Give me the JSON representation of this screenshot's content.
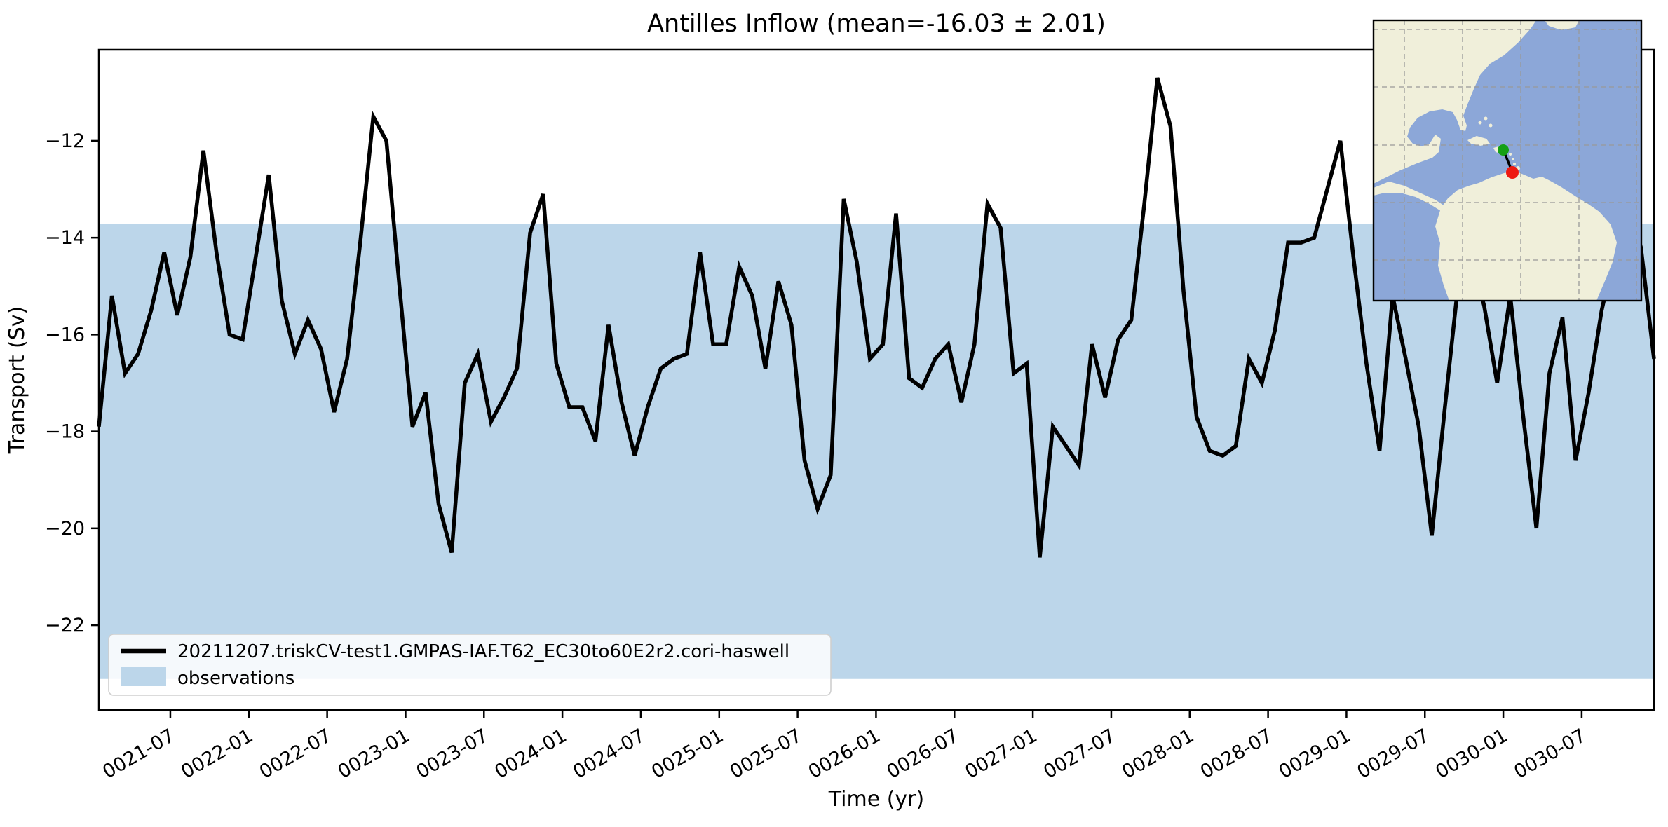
{
  "chart_data": {
    "type": "line",
    "title": "Antilles Inflow (mean=-16.03 ± 2.01)",
    "xlabel": "Time (yr)",
    "ylabel": "Transport (Sv)",
    "start_month": "0021-01",
    "interval": "monthly",
    "ylim": [
      -23.75,
      -10.12
    ],
    "grid": false,
    "legend_position": "lower left",
    "y_tick_labels": [
      "−12",
      "−14",
      "−16",
      "−18",
      "−20",
      "−22"
    ],
    "y_tick_values": [
      -12,
      -14,
      -16,
      -18,
      -20,
      -22
    ],
    "x_tick_labels": [
      "0021-07",
      "0022-01",
      "0022-07",
      "0023-01",
      "0023-07",
      "0024-01",
      "0024-07",
      "0025-01",
      "0025-07",
      "0026-01",
      "0026-07",
      "0027-01",
      "0027-07",
      "0028-01",
      "0028-07",
      "0029-01",
      "0029-07",
      "0030-01",
      "0030-07"
    ],
    "series": [
      {
        "name": "20211207.triskCV-test1.GMPAS-IAF.T62_EC30to60E2r2.cori-haswell",
        "color": "#000000",
        "values": [
          -17.9,
          -15.2,
          -16.8,
          -16.4,
          -15.5,
          -14.3,
          -15.6,
          -14.4,
          -12.2,
          -14.3,
          -16.0,
          -16.1,
          -14.4,
          -12.7,
          -15.3,
          -16.4,
          -15.7,
          -16.3,
          -17.6,
          -16.5,
          -14.1,
          -11.5,
          -12.0,
          -15.0,
          -17.9,
          -17.2,
          -19.5,
          -20.5,
          -17.0,
          -16.4,
          -17.8,
          -17.3,
          -16.7,
          -13.9,
          -13.1,
          -16.6,
          -17.5,
          -17.5,
          -18.2,
          -15.8,
          -17.4,
          -18.5,
          -17.5,
          -16.7,
          -16.5,
          -16.4,
          -14.3,
          -16.2,
          -16.2,
          -14.6,
          -15.2,
          -16.7,
          -14.9,
          -15.8,
          -18.6,
          -19.6,
          -18.9,
          -13.2,
          -14.5,
          -16.5,
          -16.2,
          -13.5,
          -16.9,
          -17.1,
          -16.5,
          -16.2,
          -17.4,
          -16.2,
          -13.3,
          -13.8,
          -16.8,
          -16.6,
          -20.6,
          -17.9,
          -18.3,
          -18.7,
          -16.2,
          -17.3,
          -16.1,
          -15.7,
          -13.3,
          -10.7,
          -11.7,
          -15.1,
          -17.7,
          -18.4,
          -18.5,
          -18.3,
          -16.5,
          -17.0,
          -15.9,
          -14.1,
          -14.1,
          -14.0,
          -13.0,
          -12.0,
          -14.4,
          -16.6,
          -18.4,
          -15.2,
          -16.5,
          -17.9,
          -20.15,
          -17.5,
          -15.0,
          -14.4,
          -15.4,
          -17.0,
          -15.2,
          -17.7,
          -20.0,
          -16.8,
          -15.65,
          -18.6,
          -17.2,
          -15.5,
          -14.3,
          -13.2,
          -14.2,
          -16.5
        ]
      }
    ],
    "observations_band": {
      "label": "observations",
      "color": "#bcd6ea",
      "from": -13.72,
      "to": -23.11
    },
    "inset_map": {
      "ocean_color": "#8ca7d8",
      "land_color": "#f0efda",
      "grid_color": "#999999",
      "start_marker_color": "#15a015",
      "end_marker_color": "#ee1a11",
      "transect_color": "#000000"
    }
  }
}
